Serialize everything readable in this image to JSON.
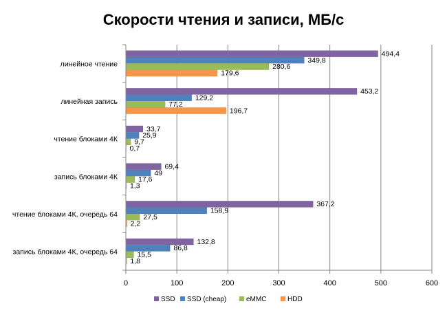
{
  "chart_data": {
    "type": "bar",
    "orientation": "horizontal",
    "title": "Скорости чтения и записи, МБ/с",
    "xlabel": "",
    "ylabel": "",
    "xlim": [
      0,
      600
    ],
    "ticks": [
      0,
      100,
      200,
      300,
      400,
      500,
      600
    ],
    "grid": true,
    "legend_position": "bottom",
    "categories": [
      "линейное чтение",
      "линейная запись",
      "чтение блоками 4К",
      "запись блоками 4К",
      "чтение блоками 4К, очередь 64",
      "запись блоками 4К, очередь 64"
    ],
    "series": [
      {
        "name": "SSD",
        "color": "#8064a2",
        "values": [
          494.4,
          453.2,
          33.7,
          69.4,
          367.2,
          132.8
        ],
        "labels": [
          "494,4",
          "453,2",
          "33,7",
          "69,4",
          "367,2",
          "132,8"
        ]
      },
      {
        "name": "SSD (cheap)",
        "color": "#4f81bd",
        "values": [
          349.8,
          129.2,
          25.9,
          49,
          158.9,
          86.8
        ],
        "labels": [
          "349,8",
          "129,2",
          "25,9",
          "49",
          "158,9",
          "86,8"
        ]
      },
      {
        "name": "eMMC",
        "color": "#9bbb59",
        "values": [
          280.6,
          77.2,
          9.7,
          17.6,
          27.5,
          15.5
        ],
        "labels": [
          "280,6",
          "77,2",
          "9,7",
          "17,6",
          "27,5",
          "15,5"
        ]
      },
      {
        "name": "HDD",
        "color": "#f79646",
        "values": [
          179.6,
          196.7,
          0.7,
          1.3,
          2.2,
          1.8
        ],
        "labels": [
          "179,6",
          "196,7",
          "0,7",
          "1,3",
          "2,2",
          "1,8"
        ]
      }
    ]
  }
}
